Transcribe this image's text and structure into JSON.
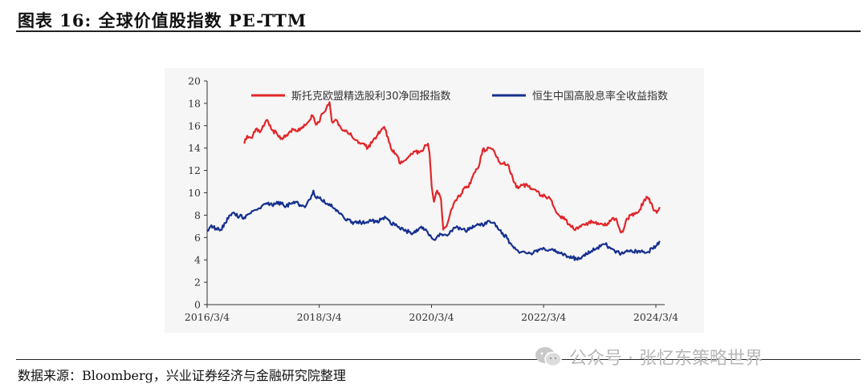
{
  "header": {
    "title": "图表 16:  全球价值股指数 PE-TTM"
  },
  "footer": {
    "source": "数据来源：Bloomberg，兴业证券经济与金融研究院整理"
  },
  "watermark": {
    "text": "公众号 · 张忆东策略世界",
    "icon": "wechat-icon"
  },
  "chart_data": {
    "type": "line",
    "title": "",
    "xlabel": "",
    "ylabel": "",
    "ylim": [
      0,
      20
    ],
    "yticks": [
      0,
      2,
      4,
      6,
      8,
      10,
      12,
      14,
      16,
      18,
      20
    ],
    "xlim": [
      "2016-03-04",
      "2024-03-04"
    ],
    "xticks": [
      "2016/3/4",
      "2018/3/4",
      "2020/3/4",
      "2022/3/4",
      "2024/3/4"
    ],
    "grid": false,
    "legend_position": "top",
    "series": [
      {
        "name": "斯托克欧盟精选股利30净回报指数",
        "color": "#e2262a",
        "points": [
          [
            "2016-11-01",
            14.4
          ],
          [
            "2016-11-20",
            15.1
          ],
          [
            "2016-12-15",
            14.9
          ],
          [
            "2017-01-15",
            15.7
          ],
          [
            "2017-02-10",
            15.4
          ],
          [
            "2017-03-15",
            16.2
          ],
          [
            "2017-04-01",
            16.5
          ],
          [
            "2017-05-01",
            15.6
          ],
          [
            "2017-06-01",
            15.3
          ],
          [
            "2017-07-01",
            14.9
          ],
          [
            "2017-08-15",
            15.3
          ],
          [
            "2017-09-15",
            15.7
          ],
          [
            "2017-10-15",
            15.5
          ],
          [
            "2017-11-15",
            15.9
          ],
          [
            "2017-12-20",
            16.3
          ],
          [
            "2018-01-20",
            16.9
          ],
          [
            "2018-02-10",
            16.1
          ],
          [
            "2018-03-01",
            16.3
          ],
          [
            "2018-03-25",
            17.1
          ],
          [
            "2018-04-20",
            17.6
          ],
          [
            "2018-05-10",
            18.1
          ],
          [
            "2018-05-25",
            16.4
          ],
          [
            "2018-06-25",
            16.5
          ],
          [
            "2018-08-01",
            15.6
          ],
          [
            "2018-09-01",
            15.5
          ],
          [
            "2018-10-01",
            15.1
          ],
          [
            "2018-11-01",
            14.7
          ],
          [
            "2018-12-15",
            14.4
          ],
          [
            "2019-01-15",
            14.0
          ],
          [
            "2019-02-15",
            14.6
          ],
          [
            "2019-03-20",
            15.2
          ],
          [
            "2019-05-01",
            15.9
          ],
          [
            "2019-05-25",
            15.0
          ],
          [
            "2019-06-20",
            13.8
          ],
          [
            "2019-07-20",
            13.4
          ],
          [
            "2019-08-15",
            12.6
          ],
          [
            "2019-09-15",
            12.9
          ],
          [
            "2019-10-15",
            13.3
          ],
          [
            "2019-11-15",
            13.7
          ],
          [
            "2019-12-15",
            13.6
          ],
          [
            "2020-01-15",
            14.0
          ],
          [
            "2020-02-10",
            14.4
          ],
          [
            "2020-02-20",
            13.6
          ],
          [
            "2020-03-05",
            10.6
          ],
          [
            "2020-03-20",
            9.2
          ],
          [
            "2020-04-10",
            10.2
          ],
          [
            "2020-05-05",
            9.4
          ],
          [
            "2020-05-20",
            6.7
          ],
          [
            "2020-06-10",
            7.0
          ],
          [
            "2020-07-01",
            8.0
          ],
          [
            "2020-08-01",
            9.2
          ],
          [
            "2020-09-01",
            9.7
          ],
          [
            "2020-10-01",
            10.4
          ],
          [
            "2020-11-01",
            10.5
          ],
          [
            "2020-12-01",
            11.6
          ],
          [
            "2021-01-01",
            12.2
          ],
          [
            "2021-02-01",
            13.9
          ],
          [
            "2021-02-20",
            13.8
          ],
          [
            "2021-03-20",
            14.0
          ],
          [
            "2021-04-20",
            13.6
          ],
          [
            "2021-05-15",
            12.8
          ],
          [
            "2021-06-15",
            12.6
          ],
          [
            "2021-07-20",
            12.4
          ],
          [
            "2021-08-20",
            11.0
          ],
          [
            "2021-09-20",
            10.4
          ],
          [
            "2021-10-20",
            10.7
          ],
          [
            "2021-11-20",
            10.6
          ],
          [
            "2021-12-20",
            10.3
          ],
          [
            "2022-01-20",
            10.1
          ],
          [
            "2022-02-20",
            9.8
          ],
          [
            "2022-03-20",
            9.6
          ],
          [
            "2022-04-20",
            9.4
          ],
          [
            "2022-05-15",
            8.6
          ],
          [
            "2022-06-20",
            7.9
          ],
          [
            "2022-07-20",
            7.6
          ],
          [
            "2022-08-20",
            7.2
          ],
          [
            "2022-09-20",
            6.7
          ],
          [
            "2022-10-20",
            6.9
          ],
          [
            "2022-11-20",
            7.2
          ],
          [
            "2022-12-20",
            7.3
          ],
          [
            "2023-01-20",
            7.4
          ],
          [
            "2023-02-20",
            7.3
          ],
          [
            "2023-03-20",
            7.2
          ],
          [
            "2023-04-20",
            7.1
          ],
          [
            "2023-05-20",
            7.6
          ],
          [
            "2023-06-20",
            7.7
          ],
          [
            "2023-07-15",
            6.6
          ],
          [
            "2023-08-01",
            6.5
          ],
          [
            "2023-08-20",
            7.4
          ],
          [
            "2023-09-20",
            8.0
          ],
          [
            "2023-10-20",
            8.1
          ],
          [
            "2023-11-20",
            8.5
          ],
          [
            "2023-12-20",
            9.4
          ],
          [
            "2024-01-10",
            9.6
          ],
          [
            "2024-02-01",
            9.1
          ],
          [
            "2024-02-20",
            8.4
          ],
          [
            "2024-03-10",
            8.2
          ],
          [
            "2024-04-01",
            8.6
          ]
        ]
      },
      {
        "name": "恒生中国高股息率全收益指数",
        "color": "#16308e",
        "points": [
          [
            "2016-03-04",
            6.6
          ],
          [
            "2016-04-01",
            7.1
          ],
          [
            "2016-05-01",
            6.8
          ],
          [
            "2016-06-01",
            6.7
          ],
          [
            "2016-07-01",
            7.3
          ],
          [
            "2016-08-01",
            8.0
          ],
          [
            "2016-09-01",
            8.1
          ],
          [
            "2016-10-01",
            7.9
          ],
          [
            "2016-11-01",
            7.8
          ],
          [
            "2016-12-01",
            8.1
          ],
          [
            "2017-01-01",
            8.4
          ],
          [
            "2017-02-01",
            8.6
          ],
          [
            "2017-03-01",
            8.9
          ],
          [
            "2017-04-01",
            9.0
          ],
          [
            "2017-05-01",
            8.9
          ],
          [
            "2017-06-01",
            9.2
          ],
          [
            "2017-07-01",
            9.0
          ],
          [
            "2017-08-01",
            8.8
          ],
          [
            "2017-09-01",
            9.0
          ],
          [
            "2017-10-01",
            9.2
          ],
          [
            "2017-11-01",
            8.9
          ],
          [
            "2017-12-01",
            8.7
          ],
          [
            "2018-01-01",
            9.4
          ],
          [
            "2018-01-25",
            10.2
          ],
          [
            "2018-02-15",
            9.5
          ],
          [
            "2018-03-10",
            9.6
          ],
          [
            "2018-04-10",
            9.1
          ],
          [
            "2018-05-10",
            9.0
          ],
          [
            "2018-06-10",
            8.6
          ],
          [
            "2018-07-10",
            8.2
          ],
          [
            "2018-08-10",
            7.8
          ],
          [
            "2018-09-10",
            7.6
          ],
          [
            "2018-10-10",
            7.2
          ],
          [
            "2018-11-10",
            7.4
          ],
          [
            "2018-12-10",
            7.3
          ],
          [
            "2019-01-10",
            7.4
          ],
          [
            "2019-02-10",
            7.5
          ],
          [
            "2019-03-10",
            7.4
          ],
          [
            "2019-04-10",
            7.6
          ],
          [
            "2019-05-10",
            7.8
          ],
          [
            "2019-06-10",
            7.3
          ],
          [
            "2019-07-10",
            7.1
          ],
          [
            "2019-08-10",
            6.8
          ],
          [
            "2019-09-10",
            6.6
          ],
          [
            "2019-10-10",
            6.5
          ],
          [
            "2019-11-10",
            6.4
          ],
          [
            "2019-12-10",
            6.7
          ],
          [
            "2020-01-10",
            6.9
          ],
          [
            "2020-02-01",
            6.6
          ],
          [
            "2020-03-01",
            6.1
          ],
          [
            "2020-03-20",
            5.8
          ],
          [
            "2020-04-10",
            6.1
          ],
          [
            "2020-05-10",
            6.3
          ],
          [
            "2020-06-10",
            6.2
          ],
          [
            "2020-07-10",
            6.6
          ],
          [
            "2020-08-10",
            6.9
          ],
          [
            "2020-09-10",
            6.8
          ],
          [
            "2020-10-10",
            6.6
          ],
          [
            "2020-11-10",
            6.9
          ],
          [
            "2020-12-10",
            7.0
          ],
          [
            "2021-01-10",
            7.2
          ],
          [
            "2021-02-10",
            7.1
          ],
          [
            "2021-03-10",
            7.5
          ],
          [
            "2021-04-10",
            7.3
          ],
          [
            "2021-05-10",
            6.8
          ],
          [
            "2021-06-10",
            6.4
          ],
          [
            "2021-07-10",
            5.9
          ],
          [
            "2021-08-10",
            5.3
          ],
          [
            "2021-09-10",
            4.9
          ],
          [
            "2021-10-10",
            4.7
          ],
          [
            "2021-11-10",
            4.6
          ],
          [
            "2021-12-10",
            4.6
          ],
          [
            "2022-01-10",
            4.8
          ],
          [
            "2022-02-10",
            5.0
          ],
          [
            "2022-03-10",
            5.0
          ],
          [
            "2022-04-10",
            4.9
          ],
          [
            "2022-05-10",
            4.8
          ],
          [
            "2022-06-10",
            4.7
          ],
          [
            "2022-07-10",
            4.4
          ],
          [
            "2022-08-10",
            4.3
          ],
          [
            "2022-09-10",
            4.2
          ],
          [
            "2022-10-10",
            4.0
          ],
          [
            "2022-11-10",
            4.3
          ],
          [
            "2022-12-10",
            4.5
          ],
          [
            "2023-01-10",
            4.8
          ],
          [
            "2023-02-10",
            5.0
          ],
          [
            "2023-03-10",
            5.2
          ],
          [
            "2023-04-10",
            5.4
          ],
          [
            "2023-05-10",
            5.1
          ],
          [
            "2023-06-10",
            4.8
          ],
          [
            "2023-07-10",
            4.6
          ],
          [
            "2023-08-10",
            4.6
          ],
          [
            "2023-09-10",
            4.8
          ],
          [
            "2023-10-10",
            4.7
          ],
          [
            "2023-11-10",
            4.8
          ],
          [
            "2023-12-10",
            4.7
          ],
          [
            "2024-01-10",
            4.7
          ],
          [
            "2024-02-10",
            5.0
          ],
          [
            "2024-03-10",
            5.3
          ],
          [
            "2024-04-01",
            5.6
          ]
        ]
      }
    ]
  }
}
